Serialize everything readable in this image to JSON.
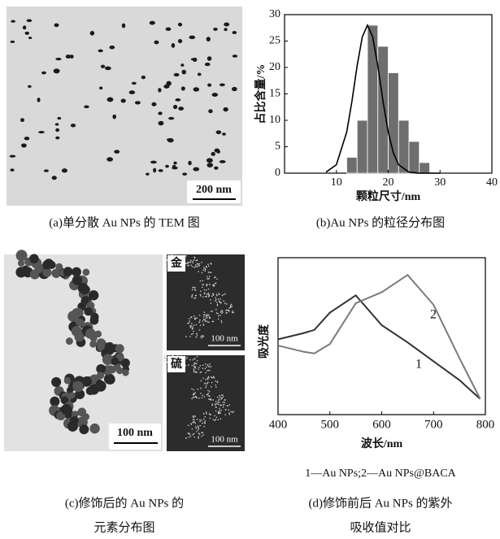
{
  "images": {
    "tem": {
      "scale_bar": "200 nm",
      "caption": "(a)单分散 Au NPs 的 TEM 图"
    },
    "mapping": {
      "scale_bar_main": "100 nm",
      "label_gold": "金",
      "scale_bar_gold": "100 nm",
      "label_sulfur": "硫",
      "scale_bar_sulfur": "100 nm",
      "caption": [
        "(c)修饰后的 Au NPs 的",
        "元素分布图"
      ]
    }
  },
  "chart_data": [
    {
      "type": "histogram",
      "caption": "(b)Au NPs 的粒径分布图",
      "xlabel": "颗粒尺寸/nm",
      "ylabel": "占比含量/%",
      "bins": [
        12,
        14,
        16,
        18,
        20,
        22,
        24,
        26,
        28
      ],
      "values": [
        3,
        10,
        28,
        24,
        19,
        10,
        6,
        2
      ],
      "color": "#6e6e6e",
      "fit_curve": {
        "x": [
          8,
          10,
          12,
          13,
          14,
          15,
          16,
          17,
          18,
          19,
          20,
          21,
          22,
          24,
          26,
          28,
          30
        ],
        "values": [
          0.2,
          1.6,
          7.8,
          13.6,
          20.3,
          25.8,
          28,
          25.8,
          20.3,
          13.6,
          7.8,
          3.8,
          1.6,
          0.2,
          0,
          0,
          0
        ],
        "color": "#000000"
      },
      "xlim": [
        0,
        40
      ],
      "xticks": [
        10,
        20,
        30,
        40
      ],
      "ylim": [
        0,
        30
      ],
      "yticks": [
        0,
        5,
        10,
        15,
        20,
        25,
        30
      ]
    },
    {
      "type": "line",
      "caption": [
        "(d)修饰前后 Au NPs 的紫外",
        "吸收值对比"
      ],
      "note": "1—Au NPs;2—Au NPs@BACA",
      "xlabel": "波长/nm",
      "ylabel": "吸光度",
      "x": [
        400,
        450,
        470,
        500,
        550,
        600,
        650,
        700,
        750,
        790
      ],
      "series": [
        {
          "name": "1",
          "color": "#333333",
          "values": [
            0.48,
            0.52,
            0.54,
            0.65,
            0.76,
            0.57,
            0.46,
            0.34,
            0.22,
            0.1
          ]
        },
        {
          "name": "2",
          "color": "#7a7a7a",
          "values": [
            0.44,
            0.4,
            0.39,
            0.45,
            0.71,
            0.78,
            0.89,
            0.7,
            0.36,
            0.1
          ]
        }
      ],
      "xlim": [
        400,
        800
      ],
      "xticks": [
        400,
        500,
        600,
        700,
        800
      ],
      "ylim": [
        0,
        1
      ]
    }
  ]
}
